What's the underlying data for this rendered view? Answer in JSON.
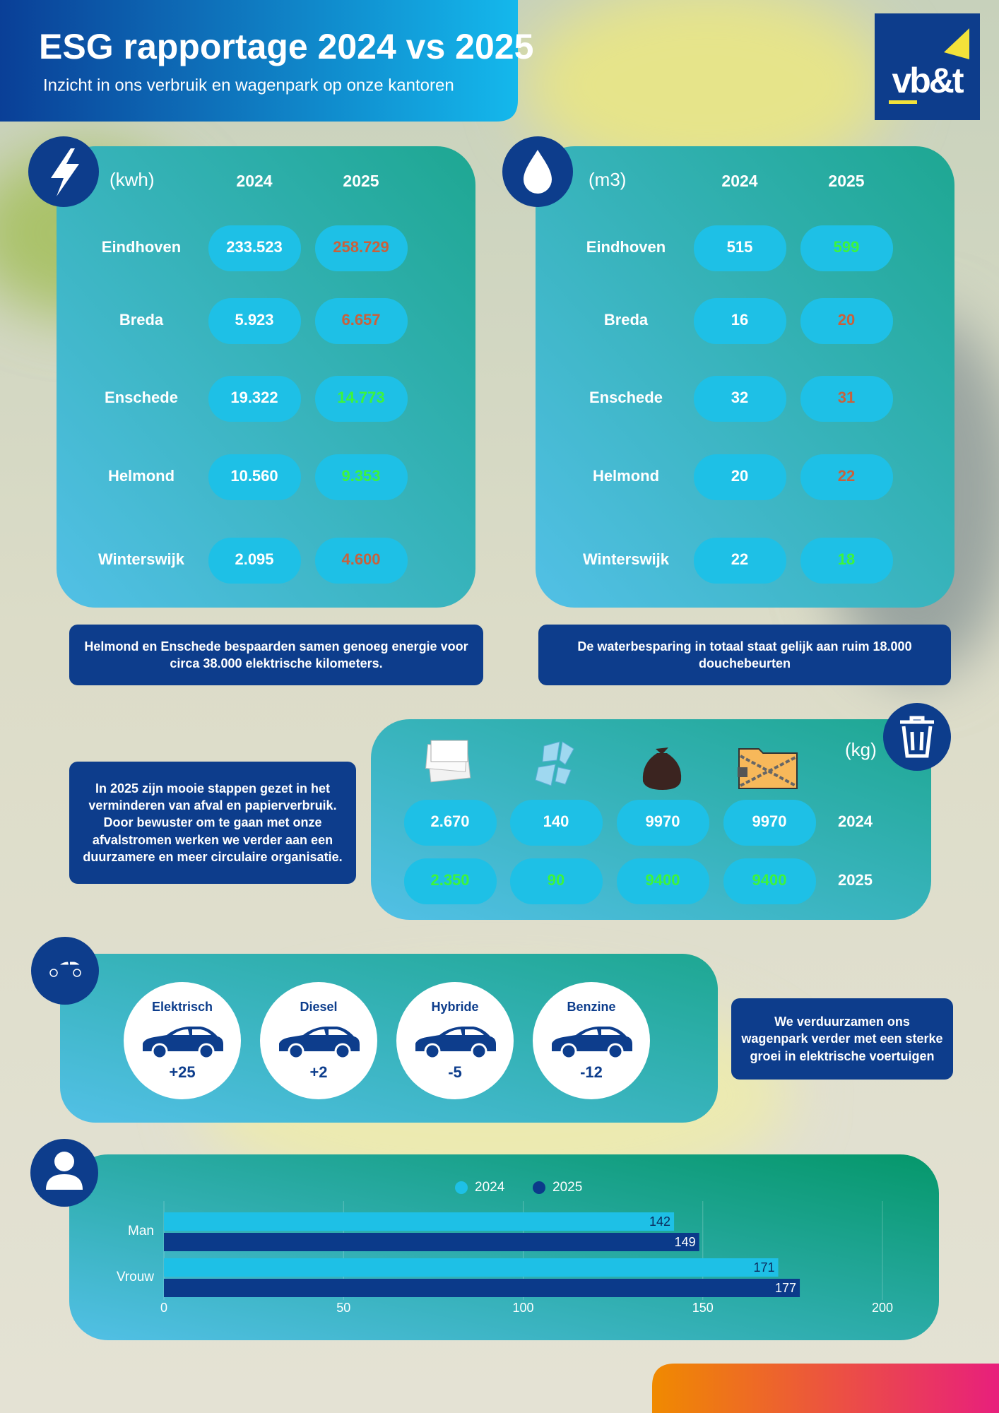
{
  "header": {
    "title": "ESG rapportage 2024 vs 2025",
    "subtitle": "Inzicht in ons verbruik en wagenpark op onze kantoren",
    "logo": "vb&t"
  },
  "energy": {
    "unit": "(kwh)",
    "years": [
      "2024",
      "2025"
    ],
    "rows": [
      {
        "location": "Eindhoven",
        "values": [
          "233.523",
          "258.729"
        ],
        "color_2025": "#c8613c"
      },
      {
        "location": "Breda",
        "values": [
          "5.923",
          "6.657"
        ],
        "color_2025": "#c8613c"
      },
      {
        "location": "Enschede",
        "values": [
          "19.322",
          "14.773"
        ],
        "color_2025": "#3cf53c"
      },
      {
        "location": "Helmond",
        "values": [
          "10.560",
          "9.353"
        ],
        "color_2025": "#3cf53c"
      },
      {
        "location": "Winterswijk",
        "values": [
          "2.095",
          "4.600"
        ],
        "color_2025": "#c8613c"
      }
    ],
    "note": "Helmond en Enschede bespaarden samen genoeg energie voor circa 38.000 elektrische kilometers."
  },
  "water": {
    "unit": "(m3)",
    "years": [
      "2024",
      "2025"
    ],
    "rows": [
      {
        "location": "Eindhoven",
        "values": [
          "515",
          "599"
        ],
        "color_2025": "#3cf53c"
      },
      {
        "location": "Breda",
        "values": [
          "16",
          "20"
        ],
        "color_2025": "#c8613c"
      },
      {
        "location": "Enschede",
        "values": [
          "32",
          "31"
        ],
        "color_2025": "#c8613c"
      },
      {
        "location": "Helmond",
        "values": [
          "20",
          "22"
        ],
        "color_2025": "#c8613c"
      },
      {
        "location": "Winterswijk",
        "values": [
          "22",
          "18"
        ],
        "color_2025": "#3cf53c"
      }
    ],
    "note": "De waterbesparing in  totaal staat gelijk aan ruim 18.000 douchebeurten"
  },
  "waste": {
    "unit": "(kg)",
    "rows": [
      {
        "year": "2024",
        "values": [
          "2.670",
          "140",
          "9970",
          "9970"
        ],
        "color": "#ffffff"
      },
      {
        "year": "2025",
        "values": [
          "2.350",
          "90",
          "9400",
          "9400"
        ],
        "color": "#3cf53c"
      }
    ],
    "note": "In 2025 zijn mooie stappen gezet in het verminderen van afval en papierverbruik. Door bewuster om te gaan met onze afvalstromen werken we verder aan een duurzamere en meer circulaire organisatie."
  },
  "fleet": {
    "vehicles": [
      {
        "name": "Elektrisch",
        "change": "+25"
      },
      {
        "name": "Diesel",
        "change": "+2"
      },
      {
        "name": "Hybride",
        "change": "-5"
      },
      {
        "name": "Benzine",
        "change": "-12"
      }
    ],
    "note": "We verduurzamen ons wagenpark verder met een sterke groei in elektrische voertuigen"
  },
  "chart_data": {
    "type": "bar",
    "orientation": "horizontal",
    "categories": [
      "Man",
      "Vrouw"
    ],
    "series": [
      {
        "name": "2024",
        "color": "#1ec0e6",
        "values": [
          142,
          171
        ]
      },
      {
        "name": "2025",
        "color": "#0b3a8a",
        "values": [
          149,
          177
        ]
      }
    ],
    "xlim": [
      0,
      200
    ],
    "xticks": [
      0,
      50,
      100,
      150,
      200
    ],
    "grid": true,
    "legend": "top"
  }
}
